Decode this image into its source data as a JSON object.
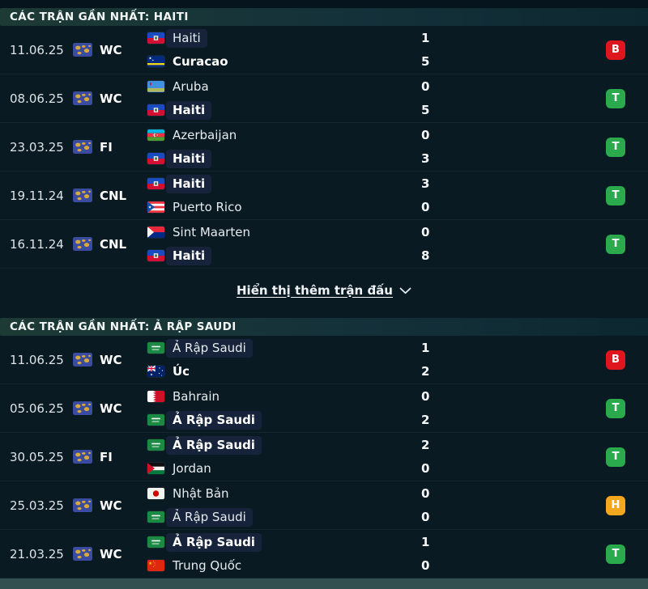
{
  "colors": {
    "win": "#2ba94d",
    "loss": "#e0161f",
    "draw": "#f2a71f"
  },
  "result_map": {
    "T": "win",
    "B": "loss",
    "H": "draw"
  },
  "sections": [
    {
      "title": "CÁC TRẬN GẦN NHẤT: HAITI",
      "show_more_label": "Hiển thị thêm trận đấu",
      "matches": [
        {
          "date": "11.06.25",
          "competition": "WC",
          "teams": [
            {
              "name": "Haiti",
              "flag": "haiti",
              "score": "1",
              "highlighted": true,
              "winner": false
            },
            {
              "name": "Curacao",
              "flag": "curacao",
              "score": "5",
              "highlighted": false,
              "winner": true
            }
          ],
          "result": "B"
        },
        {
          "date": "08.06.25",
          "competition": "WC",
          "teams": [
            {
              "name": "Aruba",
              "flag": "aruba",
              "score": "0",
              "highlighted": false,
              "winner": false
            },
            {
              "name": "Haiti",
              "flag": "haiti",
              "score": "5",
              "highlighted": true,
              "winner": true
            }
          ],
          "result": "T"
        },
        {
          "date": "23.03.25",
          "competition": "FI",
          "teams": [
            {
              "name": "Azerbaijan",
              "flag": "azerbaijan",
              "score": "0",
              "highlighted": false,
              "winner": false
            },
            {
              "name": "Haiti",
              "flag": "haiti",
              "score": "3",
              "highlighted": true,
              "winner": true
            }
          ],
          "result": "T"
        },
        {
          "date": "19.11.24",
          "competition": "CNL",
          "teams": [
            {
              "name": "Haiti",
              "flag": "haiti",
              "score": "3",
              "highlighted": true,
              "winner": true
            },
            {
              "name": "Puerto Rico",
              "flag": "puerto-rico",
              "score": "0",
              "highlighted": false,
              "winner": false
            }
          ],
          "result": "T"
        },
        {
          "date": "16.11.24",
          "competition": "CNL",
          "teams": [
            {
              "name": "Sint Maarten",
              "flag": "sint-maarten",
              "score": "0",
              "highlighted": false,
              "winner": false
            },
            {
              "name": "Haiti",
              "flag": "haiti",
              "score": "8",
              "highlighted": true,
              "winner": true
            }
          ],
          "result": "T"
        }
      ]
    },
    {
      "title": "CÁC TRẬN GẦN NHẤT: Ả RẬP SAUDI",
      "matches": [
        {
          "date": "11.06.25",
          "competition": "WC",
          "teams": [
            {
              "name": "Ả Rập Saudi",
              "flag": "saudi",
              "score": "1",
              "highlighted": true,
              "winner": false
            },
            {
              "name": "Úc",
              "flag": "australia",
              "score": "2",
              "highlighted": false,
              "winner": true
            }
          ],
          "result": "B"
        },
        {
          "date": "05.06.25",
          "competition": "WC",
          "teams": [
            {
              "name": "Bahrain",
              "flag": "bahrain",
              "score": "0",
              "highlighted": false,
              "winner": false
            },
            {
              "name": "Ả Rập Saudi",
              "flag": "saudi",
              "score": "2",
              "highlighted": true,
              "winner": true
            }
          ],
          "result": "T"
        },
        {
          "date": "30.05.25",
          "competition": "FI",
          "teams": [
            {
              "name": "Ả Rập Saudi",
              "flag": "saudi",
              "score": "2",
              "highlighted": true,
              "winner": true
            },
            {
              "name": "Jordan",
              "flag": "jordan",
              "score": "0",
              "highlighted": false,
              "winner": false
            }
          ],
          "result": "T"
        },
        {
          "date": "25.03.25",
          "competition": "WC",
          "teams": [
            {
              "name": "Nhật Bản",
              "flag": "japan",
              "score": "0",
              "highlighted": false,
              "winner": false
            },
            {
              "name": "Ả Rập Saudi",
              "flag": "saudi",
              "score": "0",
              "highlighted": true,
              "winner": false
            }
          ],
          "result": "H"
        },
        {
          "date": "21.03.25",
          "competition": "WC",
          "teams": [
            {
              "name": "Ả Rập Saudi",
              "flag": "saudi",
              "score": "1",
              "highlighted": true,
              "winner": true
            },
            {
              "name": "Trung Quốc",
              "flag": "china",
              "score": "0",
              "highlighted": false,
              "winner": false
            }
          ],
          "result": "T"
        }
      ]
    }
  ]
}
